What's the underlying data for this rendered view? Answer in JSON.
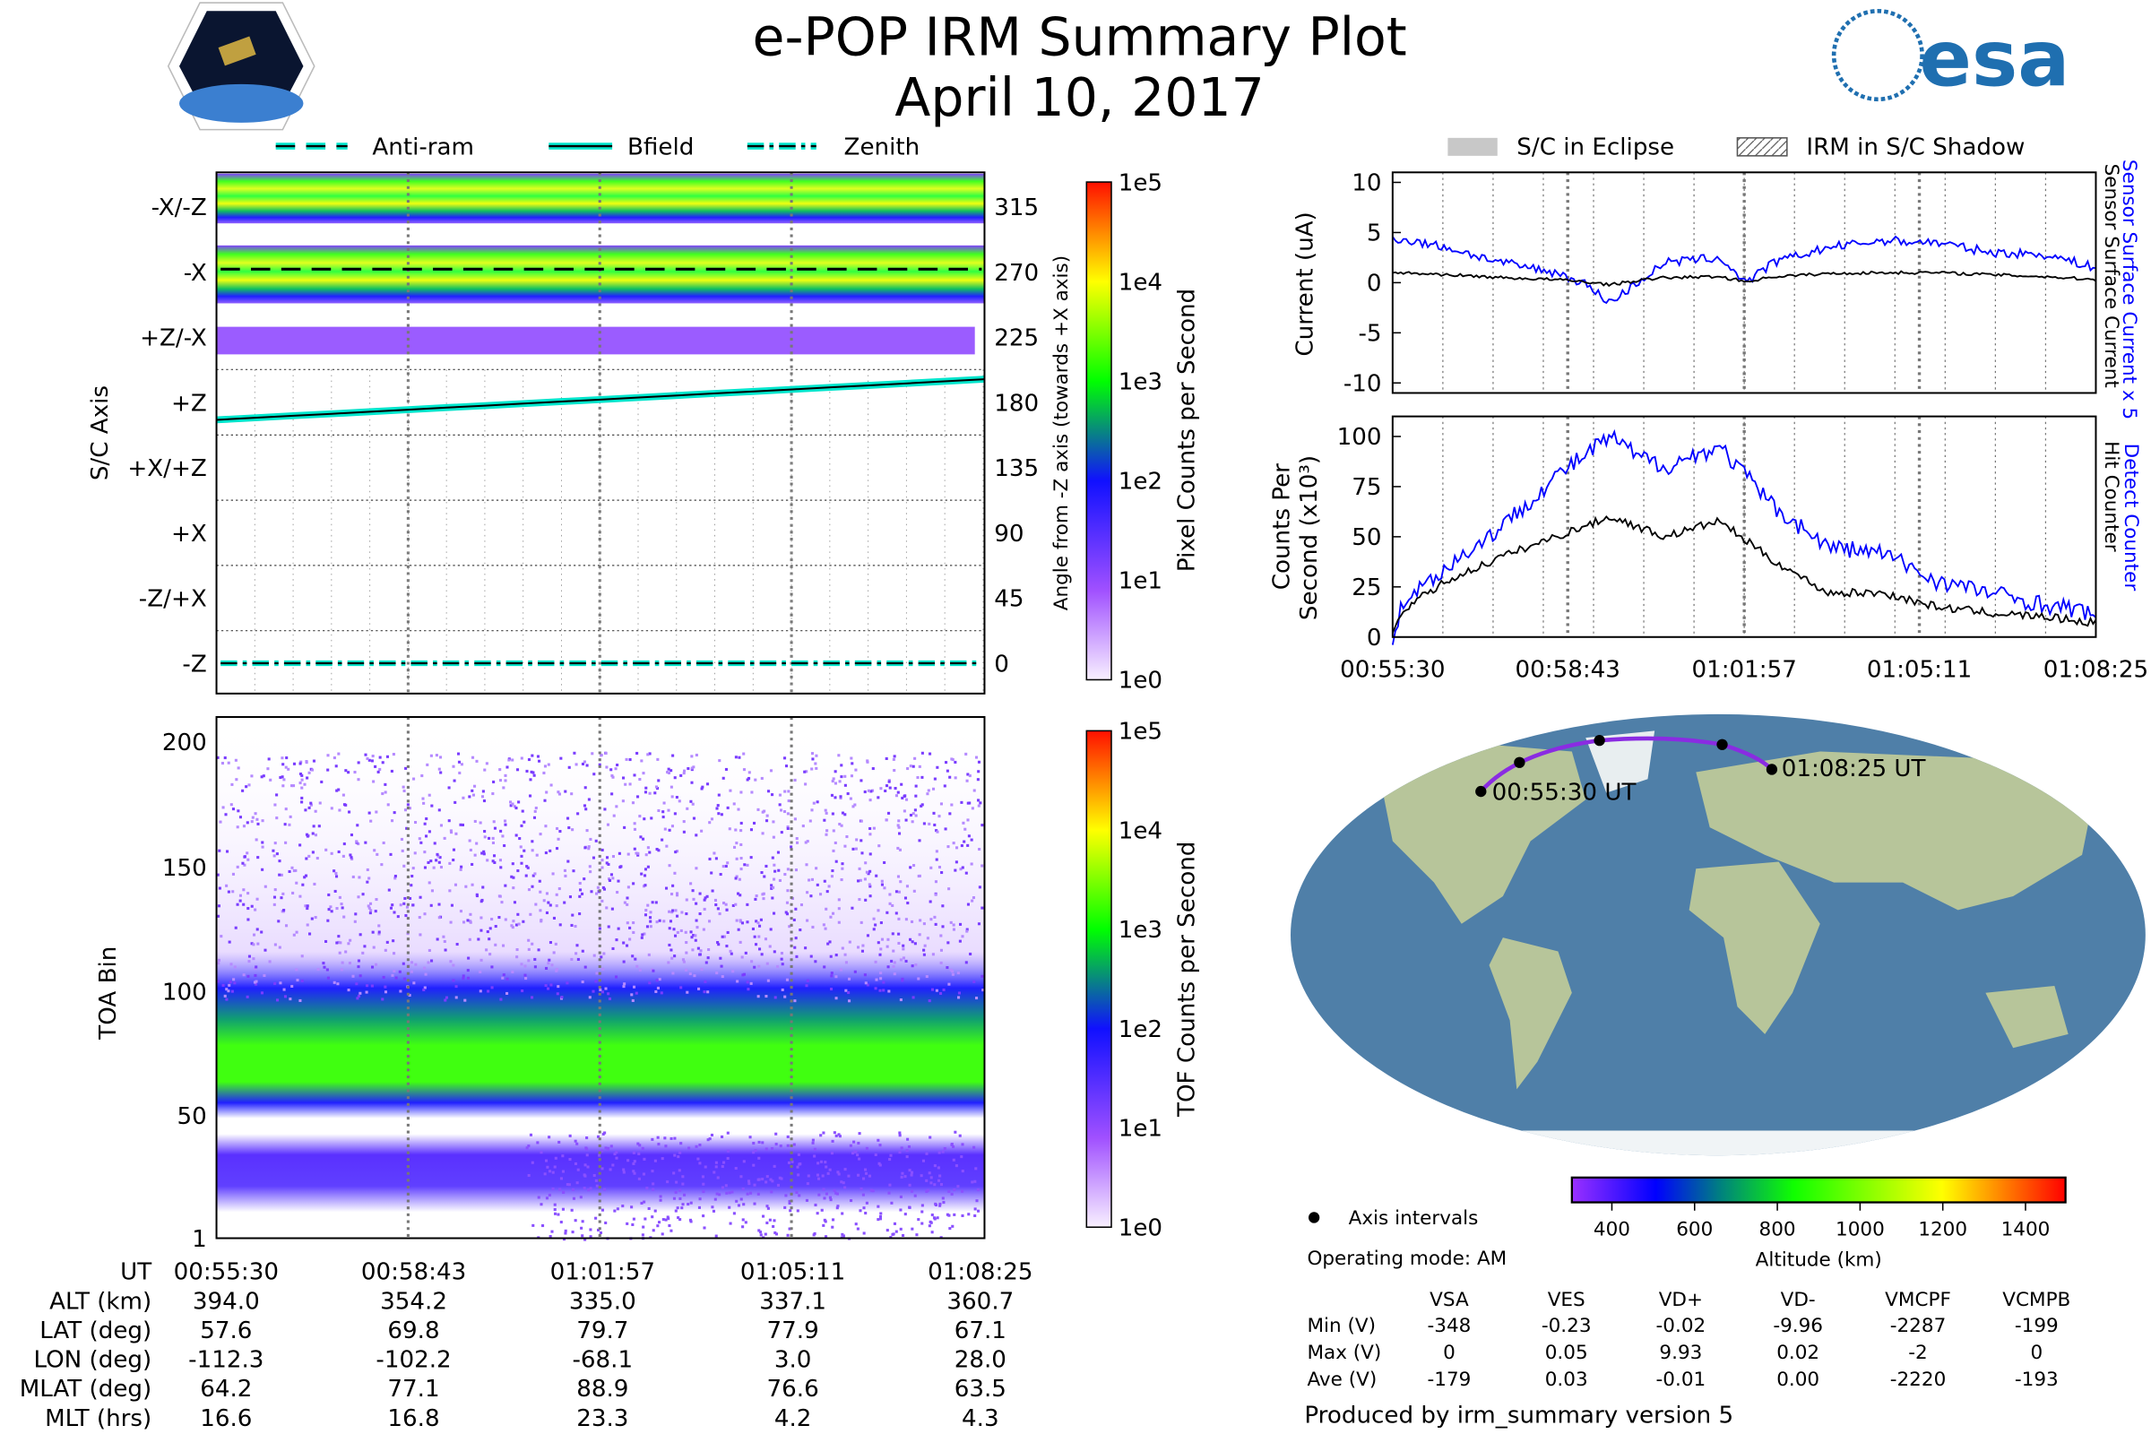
{
  "header": {
    "title": "e-POP IRM Summary Plot",
    "date": "April 10, 2017",
    "logo_left": "CASSIOPE",
    "logo_right": "esa"
  },
  "legend_left": [
    "Anti-ram",
    "Bfield",
    "Zenith"
  ],
  "legend_right": [
    "S/C in Eclipse",
    "IRM in S/C Shadow"
  ],
  "colors": {
    "blue": "#0000ff",
    "cyan": "#00e5cc",
    "purple": "#8a2be2"
  },
  "chart_data": [
    {
      "type": "heatmap",
      "title": "S/C Axis",
      "ylabel": "S/C Axis",
      "ylabel_right": "Angle from -Z axis (towards +X axis)",
      "categories": [
        "-X/-Z",
        "-X",
        "+Z/-X",
        "+Z",
        "+X/+Z",
        "+X",
        "-Z/+X",
        "-Z"
      ],
      "right_ticks": [
        "315",
        "270",
        "225",
        "180",
        "135",
        "90",
        "45",
        "0"
      ],
      "colorbar": {
        "label": "Pixel Counts per Second",
        "ticks": [
          "1e5",
          "1e4",
          "1e3",
          "1e2",
          "1e1",
          "1e0"
        ]
      },
      "lines": {
        "anti_ram_deg": [
          272,
          272
        ],
        "bfield_deg": [
          168,
          196
        ],
        "zenith_deg": [
          0,
          0
        ]
      }
    },
    {
      "type": "heatmap",
      "ylabel": "TOA Bin",
      "yticks": [
        "200",
        "150",
        "100",
        "50",
        "1"
      ],
      "colorbar": {
        "label": "TOF Counts per Second",
        "ticks": [
          "1e5",
          "1e4",
          "1e3",
          "1e2",
          "1e1",
          "1e0"
        ]
      }
    },
    {
      "type": "line",
      "ylabel": "Current (uA)",
      "ylim": [
        -11,
        11
      ],
      "yticks": [
        "10",
        "5",
        "0",
        "-5",
        "-10"
      ],
      "right_labels": [
        "Sensor Surface Current x 5",
        "Sensor Surface Current"
      ],
      "x_min": [
        0,
        1,
        2,
        3,
        3.5,
        4,
        4.5,
        5,
        6,
        6.5,
        7,
        8,
        9,
        10,
        11,
        12,
        12.92
      ],
      "series": [
        {
          "name": "Sensor Surface Current x 5",
          "color": "#0000ff",
          "values": [
            4.5,
            3.5,
            2,
            1,
            0,
            -2,
            0,
            2,
            2.5,
            0,
            2,
            3.5,
            4.2,
            4,
            3,
            2.8,
            1.5
          ]
        },
        {
          "name": "Sensor Surface Current",
          "color": "#000000",
          "values": [
            1,
            0.8,
            0.5,
            0.3,
            0.1,
            -0.2,
            0.2,
            0.5,
            0.6,
            0.1,
            0.6,
            0.9,
            1,
            1,
            0.8,
            0.6,
            0.3
          ]
        }
      ]
    },
    {
      "type": "line",
      "ylabel": "Counts Per Second (x10³)",
      "ylabel_lines": [
        "Counts Per",
        "Second (x10³)"
      ],
      "ylim": [
        0,
        110
      ],
      "yticks": [
        "100",
        "75",
        "50",
        "25",
        "0"
      ],
      "xticks": [
        "00:55:30",
        "00:58:43",
        "01:01:57",
        "01:05:11",
        "01:08:25"
      ],
      "right_labels": [
        "Detect Counter",
        "Hit Counter"
      ],
      "x_min": [
        0,
        0.2,
        1,
        2,
        3,
        4,
        4.5,
        5,
        6,
        6.5,
        7,
        8,
        9,
        10,
        11,
        12,
        12.92
      ],
      "series": [
        {
          "name": "Detect Counter",
          "color": "#0000ff",
          "values": [
            0,
            18,
            35,
            55,
            80,
            100,
            90,
            85,
            95,
            80,
            65,
            45,
            42,
            28,
            22,
            16,
            12
          ]
        },
        {
          "name": "Hit Counter",
          "color": "#000000",
          "values": [
            0,
            14,
            28,
            40,
            50,
            60,
            55,
            50,
            58,
            48,
            38,
            22,
            22,
            15,
            12,
            10,
            7
          ]
        }
      ]
    }
  ],
  "map": {
    "start_label": "00:55:30 UT",
    "end_label": "01:08:25 UT",
    "legend": "Axis intervals",
    "mode": "Operating mode: AM",
    "colorbar": {
      "label": "Altitude (km)",
      "ticks": [
        "400",
        "600",
        "800",
        "1000",
        "1200",
        "1400"
      ]
    }
  },
  "orbit_table": {
    "rows": [
      {
        "label": "UT",
        "values": [
          "00:55:30",
          "00:58:43",
          "01:01:57",
          "01:05:11",
          "01:08:25"
        ]
      },
      {
        "label": "ALT (km)",
        "values": [
          "394.0",
          "354.2",
          "335.0",
          "337.1",
          "360.7"
        ]
      },
      {
        "label": "LAT (deg)",
        "values": [
          "57.6",
          "69.8",
          "79.7",
          "77.9",
          "67.1"
        ]
      },
      {
        "label": "LON (deg)",
        "values": [
          "-112.3",
          "-102.2",
          "-68.1",
          "3.0",
          "28.0"
        ]
      },
      {
        "label": "MLAT (deg)",
        "values": [
          "64.2",
          "77.1",
          "88.9",
          "76.6",
          "63.5"
        ]
      },
      {
        "label": "MLT (hrs)",
        "values": [
          "16.6",
          "16.8",
          "23.3",
          "4.2",
          "4.3"
        ]
      }
    ]
  },
  "voltage_table": {
    "headers": [
      "VSA",
      "VES",
      "VD+",
      "VD-",
      "VMCPF",
      "VCMPB"
    ],
    "rows": [
      {
        "label": "Min (V)",
        "values": [
          "-348",
          "-0.23",
          "-0.02",
          "-9.96",
          "-2287",
          "-199"
        ]
      },
      {
        "label": "Max (V)",
        "values": [
          "0",
          "0.05",
          "9.93",
          "0.02",
          "-2",
          "0"
        ]
      },
      {
        "label": "Ave (V)",
        "values": [
          "-179",
          "0.03",
          "-0.01",
          "0.00",
          "-2220",
          "-193"
        ]
      }
    ]
  },
  "footer": "Produced by irm_summary version 5"
}
